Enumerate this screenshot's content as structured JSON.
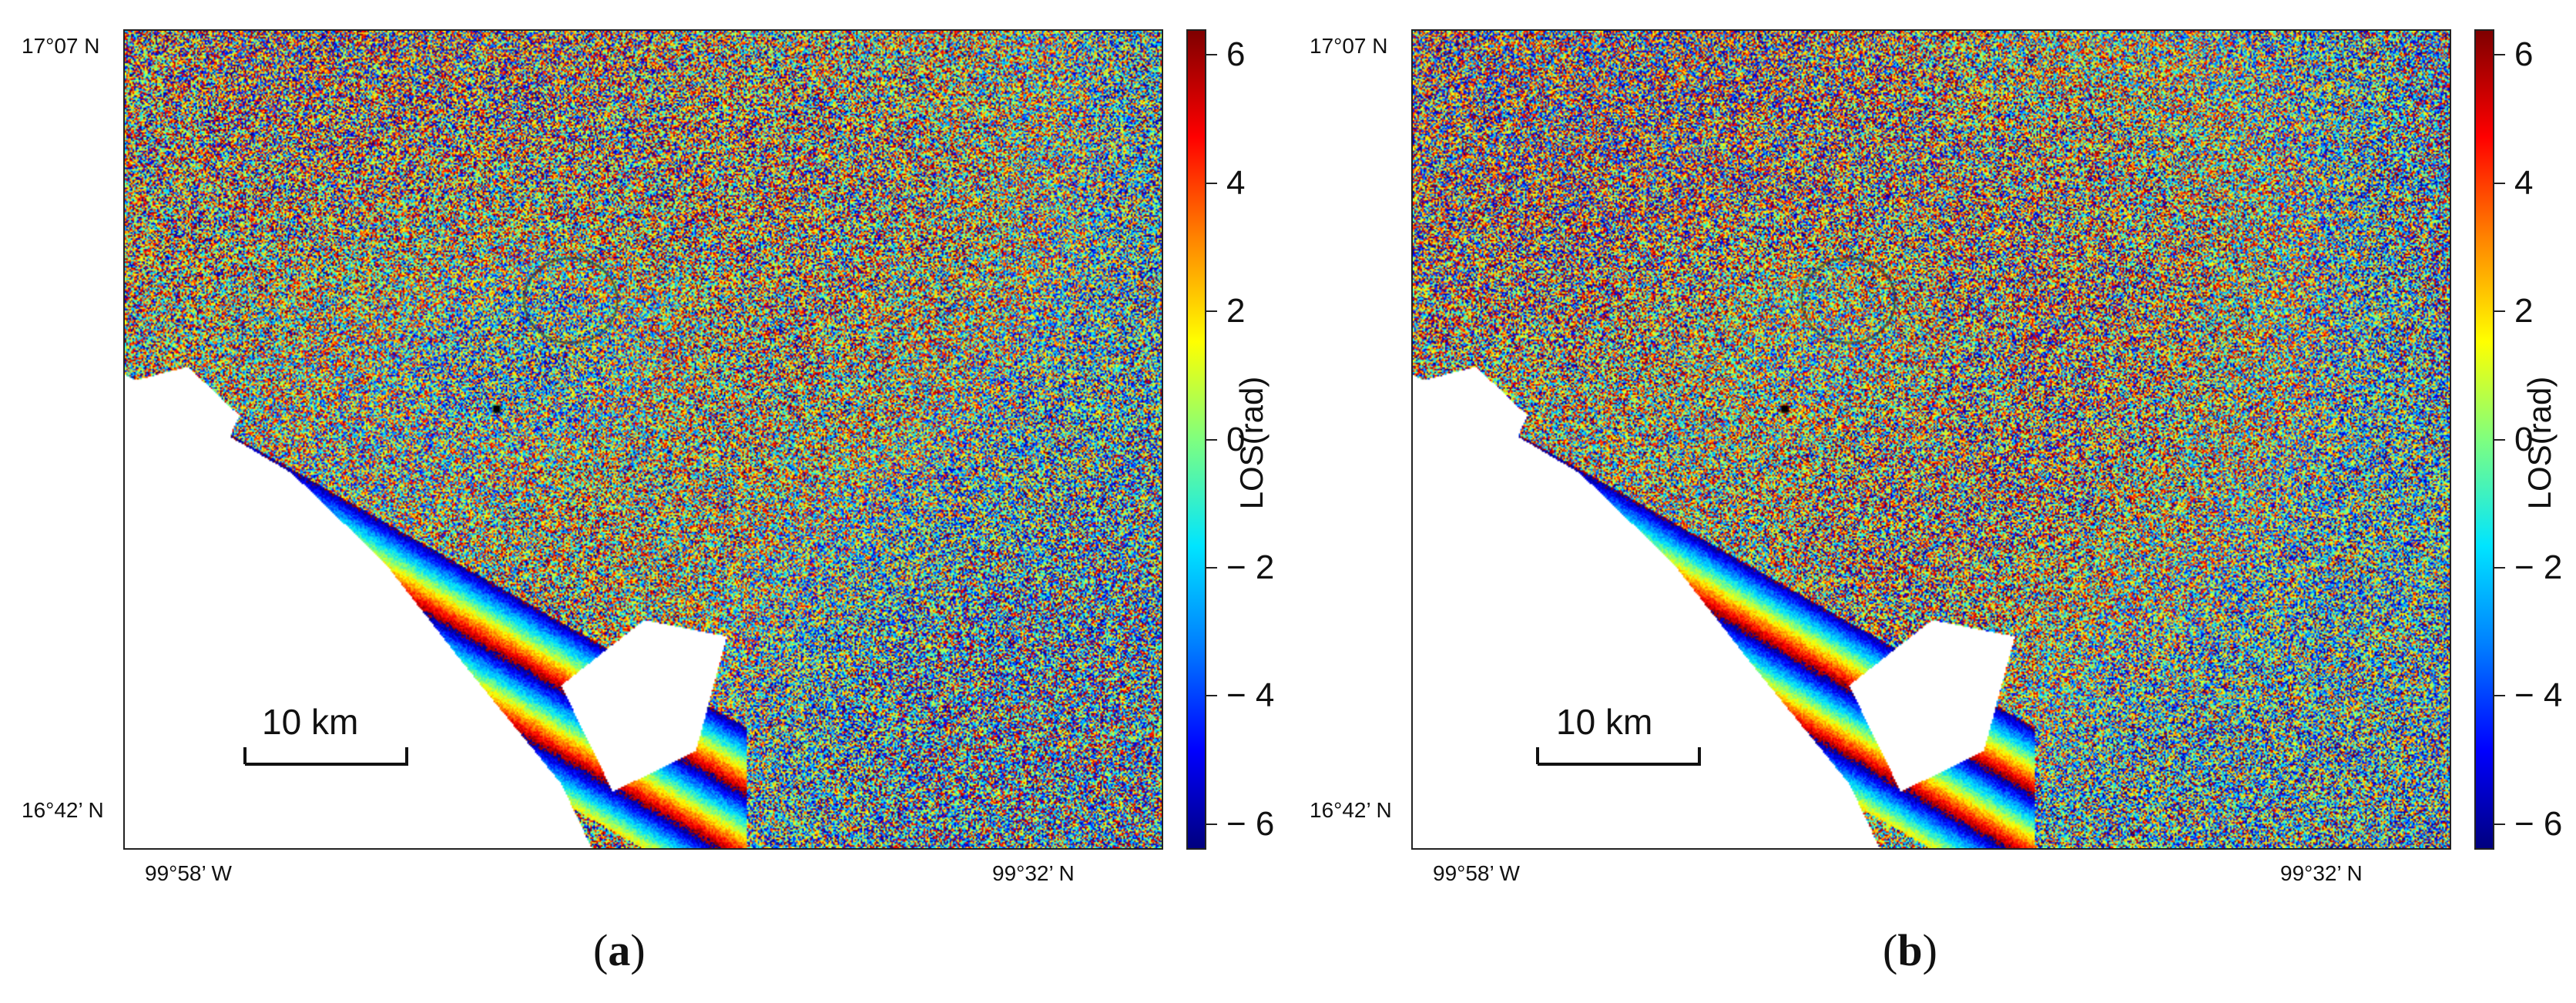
{
  "panels": [
    {
      "id": "a",
      "label_open": "(",
      "label_letter": "a",
      "label_close": ")"
    },
    {
      "id": "b",
      "label_open": "(",
      "label_letter": "b",
      "label_close": ")"
    }
  ],
  "coords": {
    "lat_top": "17°07 N",
    "lat_bottom": "16°42’ N",
    "lon_left": "99°58’ W",
    "lon_right": "99°32’ N"
  },
  "colorbar": {
    "title": "LOS(rad)",
    "ticks": [
      "6",
      "4",
      "2",
      "0",
      "− 2",
      "− 4",
      "− 6"
    ],
    "range": [
      -6.4,
      6.4
    ],
    "tick_values": [
      6,
      4,
      2,
      0,
      -2,
      -4,
      -6
    ]
  },
  "scalebar": {
    "label": "10 km"
  },
  "colors": {
    "colormap": [
      "#00007f",
      "#0000ff",
      "#0080ff",
      "#00e5ff",
      "#7fff7f",
      "#ffff00",
      "#ff8000",
      "#ff0000",
      "#7f0000"
    ],
    "marker": "#000000",
    "circle": "#3a4a3a"
  }
}
